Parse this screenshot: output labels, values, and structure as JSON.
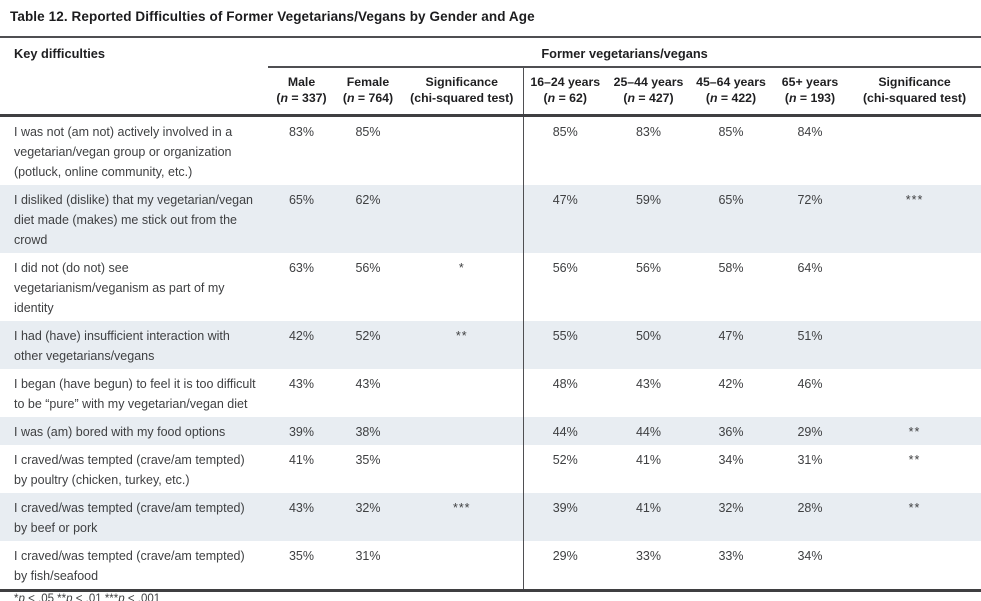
{
  "colors": {
    "row_shade": "#e8edf2",
    "rule_dark": "#3f3f41",
    "rule_medium": "#4f4f52",
    "text_body": "#3f4042",
    "text_heading": "#1f1f21"
  },
  "title": "Table 12. Reported Difficulties of Former Vegetarians/Vegans by Gender and Age",
  "table": {
    "key_column_header": "Key difficulties",
    "group_header": "Former vegetarians/vegans",
    "columns": [
      {
        "label": "Male",
        "sub": "(n = 337)"
      },
      {
        "label": "Female",
        "sub": "(n = 764)"
      },
      {
        "label": "Significance",
        "sub": "(chi-squared test)"
      },
      {
        "label": "16–24 years",
        "sub": "(n = 62)"
      },
      {
        "label": "25–44 years",
        "sub": "(n = 427)"
      },
      {
        "label": "45–64 years",
        "sub": "(n = 422)"
      },
      {
        "label": "65+ years",
        "sub": "(n = 193)"
      },
      {
        "label": "Significance",
        "sub": "(chi-squared test)"
      }
    ],
    "rows": [
      {
        "cells": [
          "I was not (am not) actively involved in a vegetarian/vegan group or organization (potluck, online community, etc.)",
          "83%",
          "85%",
          "",
          "85%",
          "83%",
          "85%",
          "84%",
          ""
        ]
      },
      {
        "cells": [
          "I disliked (dislike) that my vegetarian/vegan diet made (makes) me stick out from the crowd",
          "65%",
          "62%",
          "",
          "47%",
          "59%",
          "65%",
          "72%",
          "***"
        ]
      },
      {
        "cells": [
          "I did not (do not) see vegetarianism/veganism as part of my identity",
          "63%",
          "56%",
          "*",
          "56%",
          "56%",
          "58%",
          "64%",
          ""
        ]
      },
      {
        "cells": [
          "I had (have) insufficient interaction with other vegetarians/vegans",
          "42%",
          "52%",
          "**",
          "55%",
          "50%",
          "47%",
          "51%",
          ""
        ]
      },
      {
        "cells": [
          "I began (have begun) to feel it is too difficult to be “pure” with my vegetarian/vegan diet",
          "43%",
          "43%",
          "",
          "48%",
          "43%",
          "42%",
          "46%",
          ""
        ]
      },
      {
        "cells": [
          "I was (am) bored with my food options",
          "39%",
          "38%",
          "",
          "44%",
          "44%",
          "36%",
          "29%",
          "**"
        ]
      },
      {
        "cells": [
          "I craved/was tempted (crave/am tempted) by poultry (chicken, turkey, etc.)",
          "41%",
          "35%",
          "",
          "52%",
          "41%",
          "34%",
          "31%",
          "**"
        ]
      },
      {
        "cells": [
          "I craved/was tempted (crave/am tempted) by beef or pork",
          "43%",
          "32%",
          "***",
          "39%",
          "41%",
          "32%",
          "28%",
          "**"
        ]
      },
      {
        "cells": [
          "I craved/was tempted (crave/am tempted) by fish/seafood",
          "35%",
          "31%",
          "",
          "29%",
          "33%",
          "33%",
          "34%",
          ""
        ]
      }
    ],
    "footnote": "*p < .05 **p < .01 ***p < .001"
  }
}
